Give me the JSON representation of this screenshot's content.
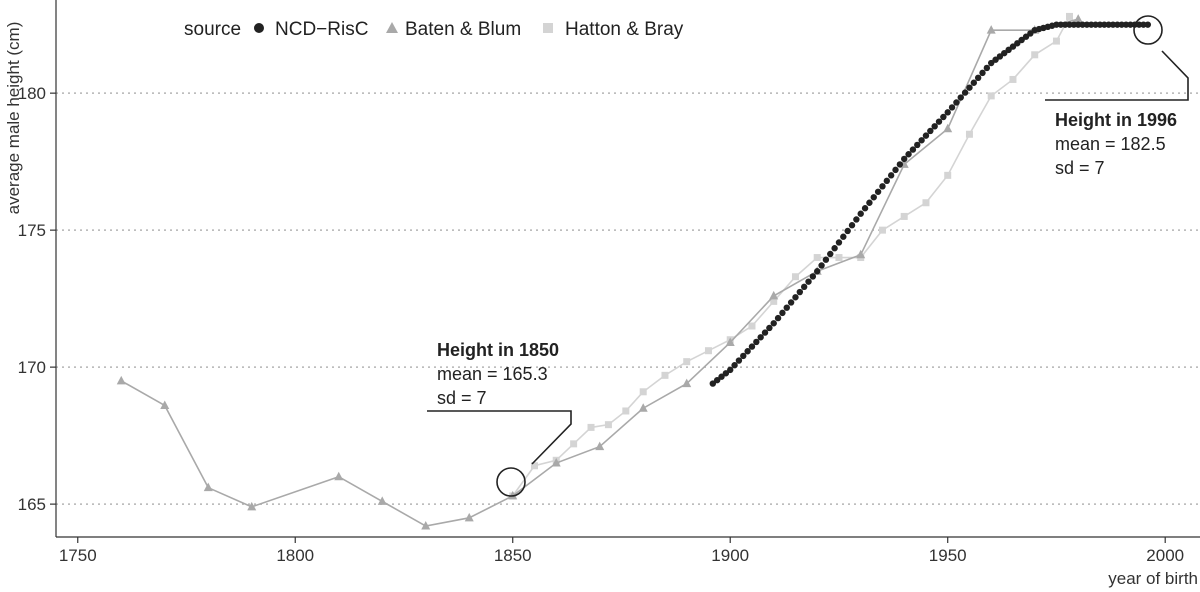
{
  "chart_data": {
    "type": "line",
    "title": "",
    "xlabel": "year of birth",
    "ylabel": "average male height (cm)",
    "xlim": [
      1745,
      2008
    ],
    "ylim": [
      163.8,
      183.4
    ],
    "x_ticks": [
      1750,
      1800,
      1850,
      1900,
      1950,
      2000
    ],
    "y_ticks": [
      165,
      170,
      175,
      180
    ],
    "grid": "horizontal dotted at y ticks",
    "legend": {
      "title": "source",
      "position": "top-left",
      "entries": [
        {
          "name": "NCD−RisC",
          "marker": "circle",
          "color": "#222222"
        },
        {
          "name": "Baten & Blum",
          "marker": "triangle",
          "color": "#a9a9a9"
        },
        {
          "name": "Hatton & Bray",
          "marker": "square",
          "color": "#d4d4d4"
        }
      ]
    },
    "series": [
      {
        "name": "NCD−RisC",
        "color": "#222222",
        "marker": "circle",
        "x_start": 1896,
        "x_end": 1996,
        "x_step": 1,
        "anchors": [
          [
            1896,
            169.4
          ],
          [
            1900,
            169.9
          ],
          [
            1910,
            171.6
          ],
          [
            1920,
            173.5
          ],
          [
            1930,
            175.6
          ],
          [
            1940,
            177.6
          ],
          [
            1950,
            179.3
          ],
          [
            1960,
            181.1
          ],
          [
            1970,
            182.3
          ],
          [
            1975,
            182.5
          ],
          [
            1996,
            182.5
          ]
        ]
      },
      {
        "name": "Baten & Blum",
        "color": "#a9a9a9",
        "marker": "triangle",
        "points": [
          [
            1760,
            169.5
          ],
          [
            1770,
            168.6
          ],
          [
            1780,
            165.6
          ],
          [
            1790,
            164.9
          ],
          [
            1810,
            166.0
          ],
          [
            1820,
            165.1
          ],
          [
            1830,
            164.2
          ],
          [
            1840,
            164.5
          ],
          [
            1850,
            165.3
          ],
          [
            1860,
            166.5
          ],
          [
            1870,
            167.1
          ],
          [
            1880,
            168.5
          ],
          [
            1890,
            169.4
          ],
          [
            1900,
            170.9
          ],
          [
            1910,
            172.6
          ],
          [
            1920,
            173.5
          ],
          [
            1930,
            174.1
          ],
          [
            1940,
            177.4
          ],
          [
            1950,
            178.7
          ],
          [
            1960,
            182.3
          ],
          [
            1970,
            182.3
          ],
          [
            1980,
            182.7
          ]
        ]
      },
      {
        "name": "Hatton & Bray",
        "color": "#d4d4d4",
        "marker": "square",
        "points": [
          [
            1850,
            165.3
          ],
          [
            1855,
            166.4
          ],
          [
            1860,
            166.6
          ],
          [
            1864,
            167.2
          ],
          [
            1868,
            167.8
          ],
          [
            1872,
            167.9
          ],
          [
            1876,
            168.4
          ],
          [
            1880,
            169.1
          ],
          [
            1885,
            169.7
          ],
          [
            1890,
            170.2
          ],
          [
            1895,
            170.6
          ],
          [
            1900,
            171.0
          ],
          [
            1905,
            171.5
          ],
          [
            1910,
            172.4
          ],
          [
            1915,
            173.3
          ],
          [
            1920,
            174.0
          ],
          [
            1925,
            174.0
          ],
          [
            1930,
            174.0
          ],
          [
            1935,
            175.0
          ],
          [
            1940,
            175.5
          ],
          [
            1945,
            176.0
          ],
          [
            1950,
            177.0
          ],
          [
            1955,
            178.5
          ],
          [
            1960,
            179.9
          ],
          [
            1965,
            180.5
          ],
          [
            1970,
            181.4
          ],
          [
            1975,
            181.9
          ],
          [
            1978,
            182.8
          ]
        ]
      }
    ],
    "annotations": [
      {
        "id": "a1850",
        "title": "Height in 1850",
        "lines": [
          "mean = 165.3",
          "sd = 7"
        ],
        "target": [
          1850,
          165.3
        ]
      },
      {
        "id": "a1996",
        "title": "Height in 1996",
        "lines": [
          "mean = 182.5",
          "sd = 7"
        ],
        "target": [
          1996,
          182.5
        ]
      }
    ]
  }
}
